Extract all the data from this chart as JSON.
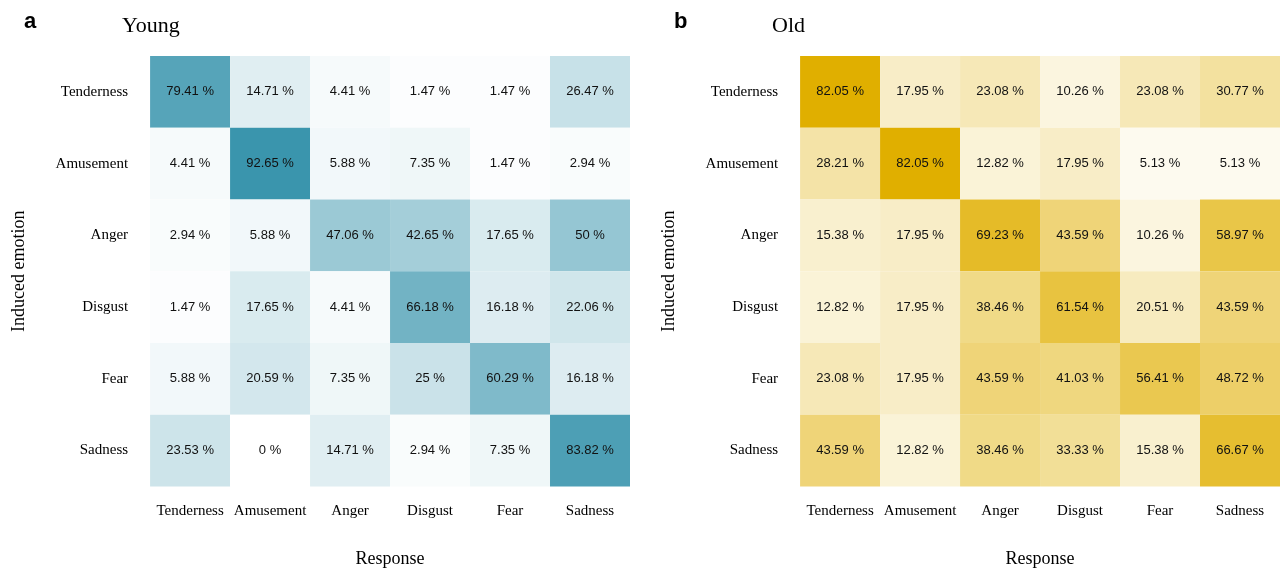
{
  "chart_data": [
    {
      "type": "heatmap",
      "title": "Young",
      "annotations": [
        "a"
      ],
      "xlabel": "Response",
      "ylabel": "Induced emotion",
      "color": "#3a95ad",
      "categories": [
        "Tenderness",
        "Amusement",
        "Anger",
        "Disgust",
        "Fear",
        "Sadness"
      ],
      "y_categories": [
        "Tenderness",
        "Amusement",
        "Anger",
        "Disgust",
        "Fear",
        "Sadness"
      ],
      "cells": [
        [
          79.41,
          14.71,
          4.41,
          1.47,
          1.47,
          26.47
        ],
        [
          4.41,
          92.65,
          5.88,
          7.35,
          1.47,
          2.94
        ],
        [
          2.94,
          5.88,
          47.06,
          42.65,
          17.65,
          50
        ],
        [
          1.47,
          17.65,
          4.41,
          66.18,
          16.18,
          22.06
        ],
        [
          5.88,
          20.59,
          7.35,
          25,
          60.29,
          16.18
        ],
        [
          23.53,
          0,
          14.71,
          2.94,
          7.35,
          83.82
        ]
      ],
      "cell_labels": [
        [
          "79.41 %",
          "14.71 %",
          "4.41 %",
          "1.47 %",
          "1.47 %",
          "26.47 %"
        ],
        [
          "4.41 %",
          "92.65 %",
          "5.88 %",
          "7.35 %",
          "1.47 %",
          "2.94 %"
        ],
        [
          "2.94 %",
          "5.88 %",
          "47.06 %",
          "42.65 %",
          "17.65 %",
          "50 %"
        ],
        [
          "1.47 %",
          "17.65 %",
          "4.41 %",
          "66.18 %",
          "16.18 %",
          "22.06 %"
        ],
        [
          "5.88 %",
          "20.59 %",
          "7.35 %",
          "25 %",
          "60.29 %",
          "16.18 %"
        ],
        [
          "23.53 %",
          "0 %",
          "14.71 %",
          "2.94 %",
          "7.35 %",
          "83.82 %"
        ]
      ]
    },
    {
      "type": "heatmap",
      "title": "Old",
      "annotations": [
        "b"
      ],
      "xlabel": "Response",
      "ylabel": "Induced emotion",
      "color": "#e0af00",
      "categories": [
        "Tenderness",
        "Amusement",
        "Anger",
        "Disgust",
        "Fear",
        "Sadness"
      ],
      "y_categories": [
        "Tenderness",
        "Amusement",
        "Anger",
        "Disgust",
        "Fear",
        "Sadness"
      ],
      "cells": [
        [
          82.05,
          17.95,
          23.08,
          10.26,
          23.08,
          30.77
        ],
        [
          28.21,
          82.05,
          12.82,
          17.95,
          5.13,
          5.13
        ],
        [
          15.38,
          17.95,
          69.23,
          43.59,
          10.26,
          58.97
        ],
        [
          12.82,
          17.95,
          38.46,
          61.54,
          20.51,
          43.59
        ],
        [
          23.08,
          17.95,
          43.59,
          41.03,
          56.41,
          48.72
        ],
        [
          43.59,
          12.82,
          38.46,
          33.33,
          15.38,
          66.67
        ]
      ],
      "cell_labels": [
        [
          "82.05 %",
          "17.95 %",
          "23.08 %",
          "10.26 %",
          "23.08 %",
          "30.77 %"
        ],
        [
          "28.21 %",
          "82.05 %",
          "12.82 %",
          "17.95 %",
          "5.13 %",
          "5.13 %"
        ],
        [
          "15.38 %",
          "17.95 %",
          "69.23 %",
          "43.59 %",
          "10.26 %",
          "58.97 %"
        ],
        [
          "12.82 %",
          "17.95 %",
          "38.46 %",
          "61.54 %",
          "20.51 %",
          "43.59 %"
        ],
        [
          "23.08 %",
          "17.95 %",
          "43.59 %",
          "41.03 %",
          "56.41 %",
          "48.72 %"
        ],
        [
          "43.59 %",
          "12.82 %",
          "38.46 %",
          "33.33 %",
          "15.38 %",
          "66.67 %"
        ]
      ]
    }
  ]
}
